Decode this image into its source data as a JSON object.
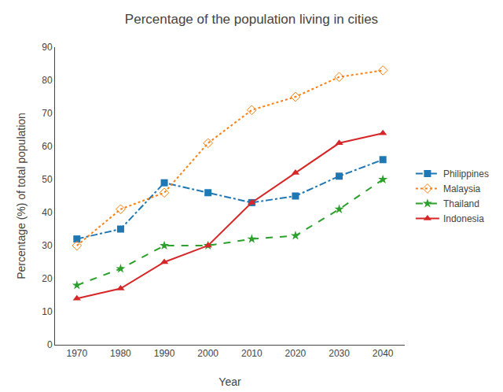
{
  "chart_data": {
    "type": "line",
    "title": "Percentage of the population living in cities",
    "xlabel": "Year",
    "ylabel": "Percentage (%) of total population",
    "x": [
      1970,
      1980,
      1990,
      2000,
      2010,
      2020,
      2030,
      2040
    ],
    "series": [
      {
        "name": "Philippines",
        "values": [
          32,
          35,
          49,
          46,
          43,
          45,
          51,
          56
        ],
        "marker": "square",
        "line_style": "dashdot"
      },
      {
        "name": "Malaysia",
        "values": [
          30,
          41,
          46,
          61,
          71,
          75,
          81,
          83
        ],
        "marker": "diamond-open",
        "line_style": "dotted"
      },
      {
        "name": "Thailand",
        "values": [
          18,
          23,
          30,
          30,
          32,
          33,
          41,
          50
        ],
        "marker": "star",
        "line_style": "dashed"
      },
      {
        "name": "Indonesia",
        "values": [
          14,
          17,
          25,
          30,
          43,
          52,
          61,
          64
        ],
        "marker": "triangle-up",
        "line_style": "solid"
      }
    ],
    "xlim": [
      1965,
      2045
    ],
    "xticks": [
      1970,
      1980,
      1990,
      2000,
      2010,
      2020,
      2030,
      2040
    ],
    "ylim": [
      0,
      90
    ],
    "yticks": [
      0,
      10,
      20,
      30,
      40,
      50,
      60,
      70,
      80,
      90
    ],
    "grid": false,
    "legend": "right"
  }
}
